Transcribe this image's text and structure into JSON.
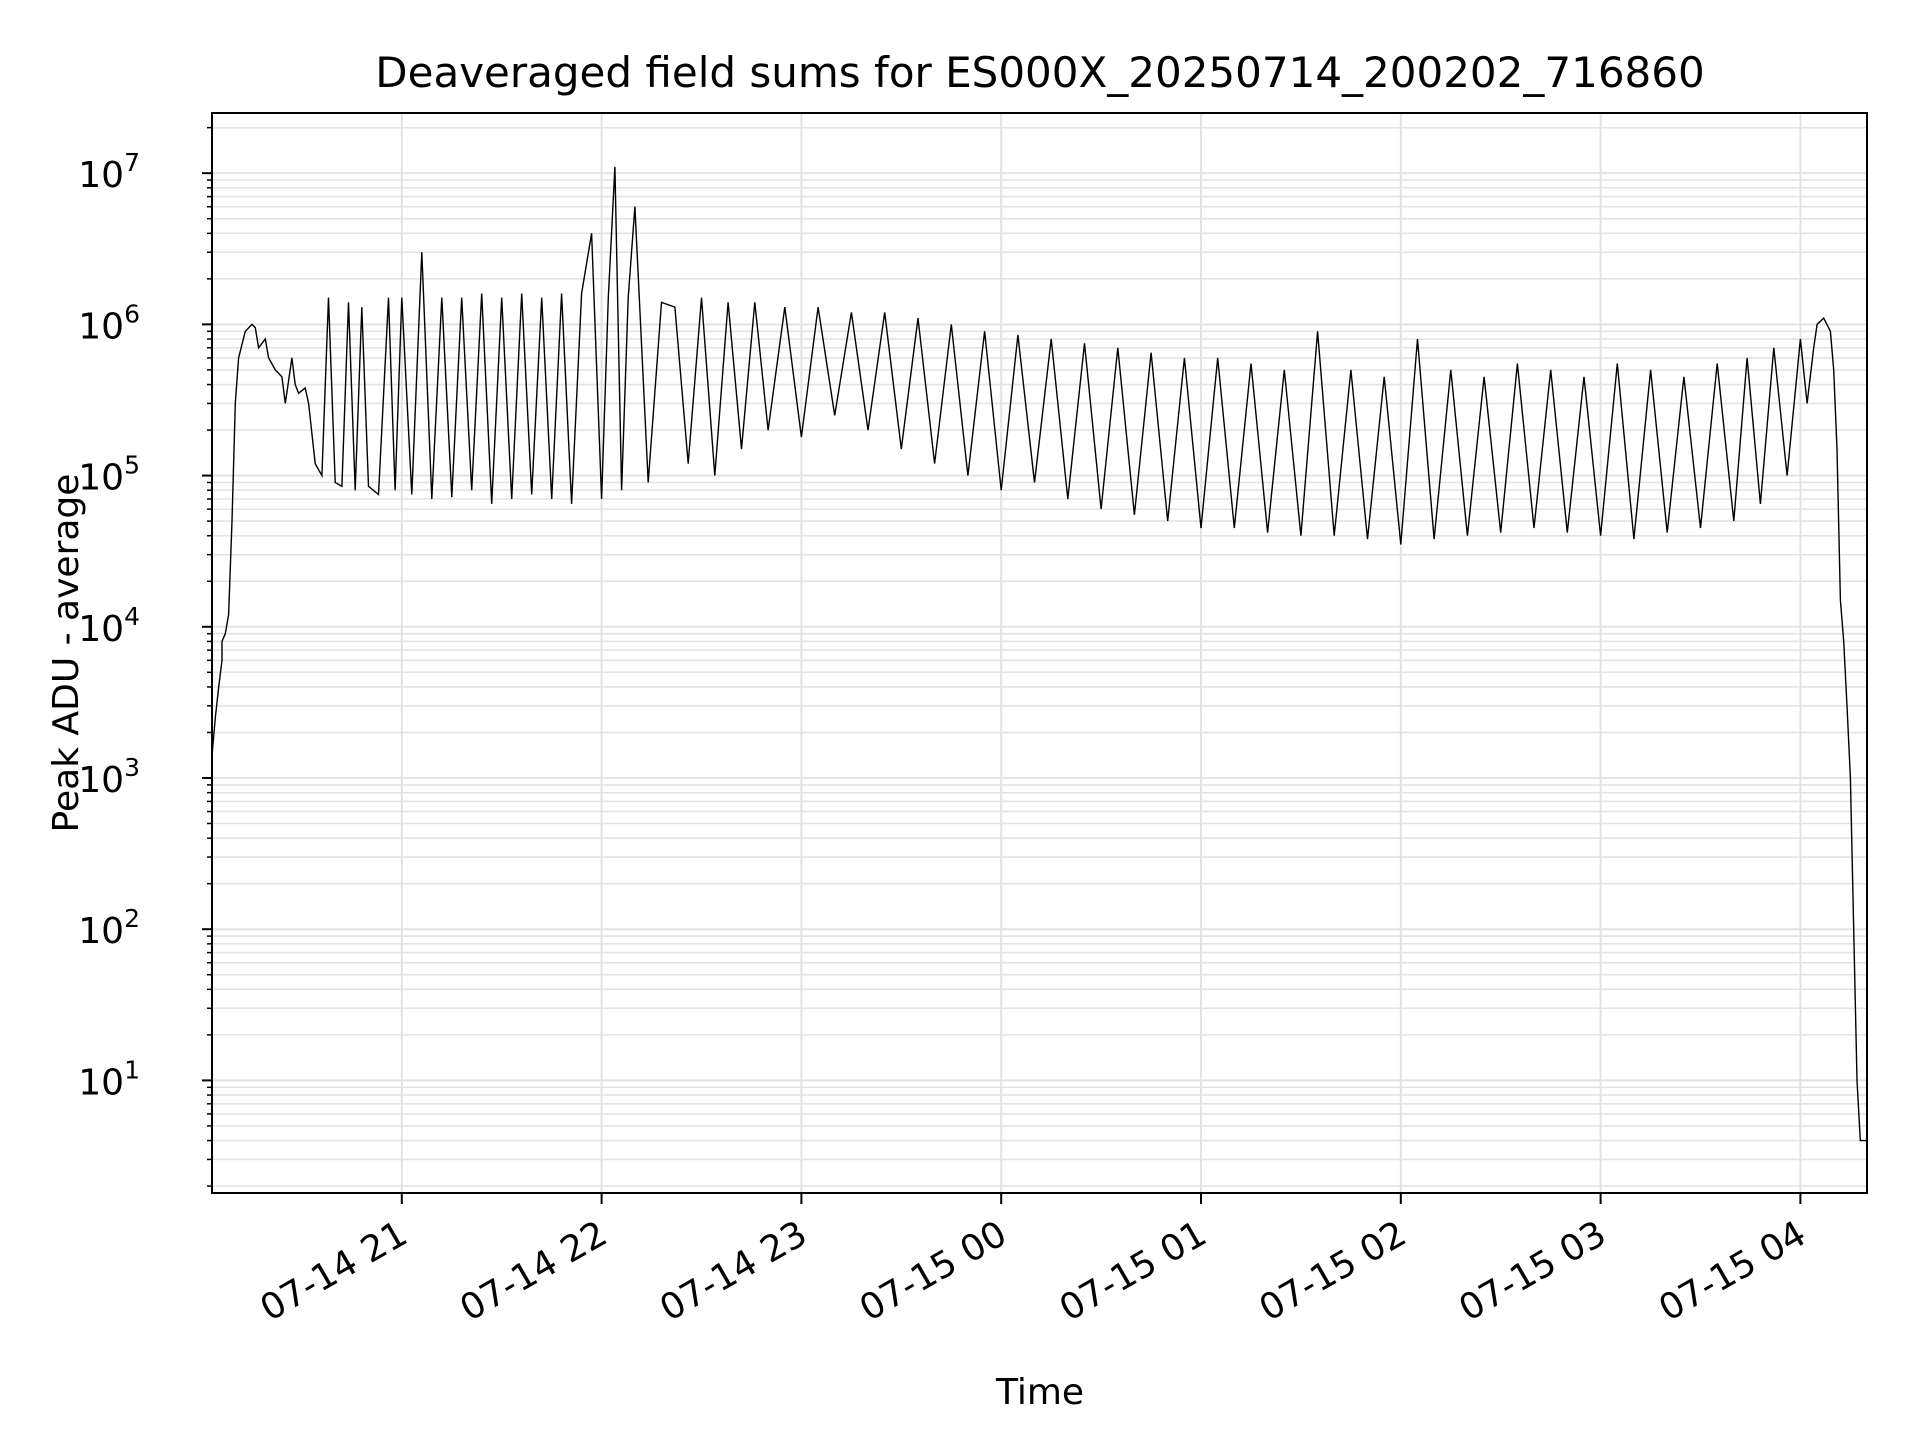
{
  "chart_data": {
    "type": "line",
    "title": "Deaveraged field sums for ES000X_20250714_200202_716860",
    "xlabel": "Time",
    "ylabel": "Peak ADU - average",
    "y_scale": "log",
    "grid": true,
    "line_color": "#000000",
    "grid_color": "#e3e3e3",
    "xlim": [
      "2025-07-14 20:03",
      "2025-07-15 04:20"
    ],
    "ylim": [
      1.8,
      25000000
    ],
    "x_ticks": [
      {
        "t": "2025-07-14 21:00",
        "label": "07-14 21"
      },
      {
        "t": "2025-07-14 22:00",
        "label": "07-14 22"
      },
      {
        "t": "2025-07-14 23:00",
        "label": "07-14 23"
      },
      {
        "t": "2025-07-15 00:00",
        "label": "07-15 00"
      },
      {
        "t": "2025-07-15 01:00",
        "label": "07-15 01"
      },
      {
        "t": "2025-07-15 02:00",
        "label": "07-15 02"
      },
      {
        "t": "2025-07-15 03:00",
        "label": "07-15 03"
      },
      {
        "t": "2025-07-15 04:00",
        "label": "07-15 04"
      }
    ],
    "y_ticks": [
      {
        "value": 10,
        "base": "10",
        "exp": "1"
      },
      {
        "value": 100,
        "base": "10",
        "exp": "2"
      },
      {
        "value": 1000,
        "base": "10",
        "exp": "3"
      },
      {
        "value": 10000,
        "base": "10",
        "exp": "4"
      },
      {
        "value": 100000,
        "base": "10",
        "exp": "5"
      },
      {
        "value": 1000000,
        "base": "10",
        "exp": "6"
      },
      {
        "value": 10000000,
        "base": "10",
        "exp": "7"
      }
    ],
    "series": [
      {
        "x": [
          "2025-07-14 20:03",
          "2025-07-14 20:04",
          "2025-07-14 20:05",
          "2025-07-14 20:06",
          "2025-07-14 20:06",
          "2025-07-14 20:07",
          "2025-07-14 20:08",
          "2025-07-14 20:09",
          "2025-07-14 20:10",
          "2025-07-14 20:11",
          "2025-07-14 20:13",
          "2025-07-14 20:15",
          "2025-07-14 20:16",
          "2025-07-14 20:17",
          "2025-07-14 20:19",
          "2025-07-14 20:20",
          "2025-07-14 20:22",
          "2025-07-14 20:24",
          "2025-07-14 20:25",
          "2025-07-14 20:27",
          "2025-07-14 20:28",
          "2025-07-14 20:29",
          "2025-07-14 20:31",
          "2025-07-14 20:32",
          "2025-07-14 20:34",
          "2025-07-14 20:36",
          "2025-07-14 20:38",
          "2025-07-14 20:40",
          "2025-07-14 20:42",
          "2025-07-14 20:44",
          "2025-07-14 20:46",
          "2025-07-14 20:48",
          "2025-07-14 20:50",
          "2025-07-14 20:53",
          "2025-07-14 20:56",
          "2025-07-14 20:58",
          "2025-07-14 21:00",
          "2025-07-14 21:03",
          "2025-07-14 21:06",
          "2025-07-14 21:09",
          "2025-07-14 21:12",
          "2025-07-14 21:15",
          "2025-07-14 21:18",
          "2025-07-14 21:21",
          "2025-07-14 21:24",
          "2025-07-14 21:27",
          "2025-07-14 21:30",
          "2025-07-14 21:33",
          "2025-07-14 21:36",
          "2025-07-14 21:39",
          "2025-07-14 21:42",
          "2025-07-14 21:45",
          "2025-07-14 21:48",
          "2025-07-14 21:51",
          "2025-07-14 21:54",
          "2025-07-14 21:57",
          "2025-07-14 22:00",
          "2025-07-14 22:02",
          "2025-07-14 22:04",
          "2025-07-14 22:06",
          "2025-07-14 22:08",
          "2025-07-14 22:10",
          "2025-07-14 22:14",
          "2025-07-14 22:18",
          "2025-07-14 22:22",
          "2025-07-14 22:26",
          "2025-07-14 22:30",
          "2025-07-14 22:34",
          "2025-07-14 22:38",
          "2025-07-14 22:42",
          "2025-07-14 22:46",
          "2025-07-14 22:50",
          "2025-07-14 22:55",
          "2025-07-14 23:00",
          "2025-07-14 23:05",
          "2025-07-14 23:10",
          "2025-07-14 23:15",
          "2025-07-14 23:20",
          "2025-07-14 23:25",
          "2025-07-14 23:30",
          "2025-07-14 23:35",
          "2025-07-14 23:40",
          "2025-07-14 23:45",
          "2025-07-14 23:50",
          "2025-07-14 23:55",
          "2025-07-15 00:00",
          "2025-07-15 00:05",
          "2025-07-15 00:10",
          "2025-07-15 00:15",
          "2025-07-15 00:20",
          "2025-07-15 00:25",
          "2025-07-15 00:30",
          "2025-07-15 00:35",
          "2025-07-15 00:40",
          "2025-07-15 00:45",
          "2025-07-15 00:50",
          "2025-07-15 00:55",
          "2025-07-15 01:00",
          "2025-07-15 01:05",
          "2025-07-15 01:10",
          "2025-07-15 01:15",
          "2025-07-15 01:20",
          "2025-07-15 01:25",
          "2025-07-15 01:30",
          "2025-07-15 01:35",
          "2025-07-15 01:40",
          "2025-07-15 01:45",
          "2025-07-15 01:50",
          "2025-07-15 01:55",
          "2025-07-15 02:00",
          "2025-07-15 02:05",
          "2025-07-15 02:10",
          "2025-07-15 02:15",
          "2025-07-15 02:20",
          "2025-07-15 02:25",
          "2025-07-15 02:30",
          "2025-07-15 02:35",
          "2025-07-15 02:40",
          "2025-07-15 02:45",
          "2025-07-15 02:50",
          "2025-07-15 02:55",
          "2025-07-15 03:00",
          "2025-07-15 03:05",
          "2025-07-15 03:10",
          "2025-07-15 03:15",
          "2025-07-15 03:20",
          "2025-07-15 03:25",
          "2025-07-15 03:30",
          "2025-07-15 03:35",
          "2025-07-15 03:40",
          "2025-07-15 03:44",
          "2025-07-15 03:48",
          "2025-07-15 03:52",
          "2025-07-15 03:56",
          "2025-07-15 04:00",
          "2025-07-15 04:02",
          "2025-07-15 04:04",
          "2025-07-15 04:05",
          "2025-07-15 04:07",
          "2025-07-15 04:09",
          "2025-07-15 04:10",
          "2025-07-15 04:11",
          "2025-07-15 04:12",
          "2025-07-15 04:13",
          "2025-07-15 04:14",
          "2025-07-15 04:15",
          "2025-07-15 04:16",
          "2025-07-15 04:17",
          "2025-07-15 04:18",
          "2025-07-15 04:19",
          "2025-07-15 04:20"
        ],
        "values": [
          1400,
          2500,
          4000,
          6000,
          8000,
          9000,
          12000,
          50000,
          300000,
          600000,
          900000,
          1000000,
          950000,
          700000,
          800000,
          600000,
          500000,
          450000,
          300000,
          600000,
          400000,
          350000,
          380000,
          300000,
          120000,
          100000,
          1500000,
          90000,
          85000,
          1400000,
          80000,
          1300000,
          85000,
          75000,
          1500000,
          80000,
          1500000,
          75000,
          3000000,
          70000,
          1500000,
          72000,
          1500000,
          80000,
          1600000,
          65000,
          1500000,
          70000,
          1600000,
          75000,
          1500000,
          70000,
          1600000,
          65000,
          1600000,
          4000000,
          70000,
          1500000,
          11000000,
          80000,
          1500000,
          6000000,
          90000,
          1400000,
          1300000,
          120000,
          1500000,
          100000,
          1400000,
          150000,
          1400000,
          200000,
          1300000,
          180000,
          1300000,
          250000,
          1200000,
          200000,
          1200000,
          150000,
          1100000,
          120000,
          1000000,
          100000,
          900000,
          80000,
          850000,
          90000,
          800000,
          70000,
          750000,
          60000,
          700000,
          55000,
          650000,
          50000,
          600000,
          45000,
          600000,
          45000,
          550000,
          42000,
          500000,
          40000,
          900000,
          40000,
          500000,
          38000,
          450000,
          35000,
          800000,
          38000,
          500000,
          40000,
          450000,
          42000,
          550000,
          45000,
          500000,
          42000,
          450000,
          40000,
          550000,
          38000,
          500000,
          42000,
          450000,
          45000,
          550000,
          50000,
          600000,
          65000,
          700000,
          100000,
          800000,
          300000,
          700000,
          1000000,
          1100000,
          900000,
          500000,
          150000,
          15000,
          8000,
          3000,
          1000,
          100,
          10,
          4,
          4,
          4
        ]
      }
    ]
  }
}
